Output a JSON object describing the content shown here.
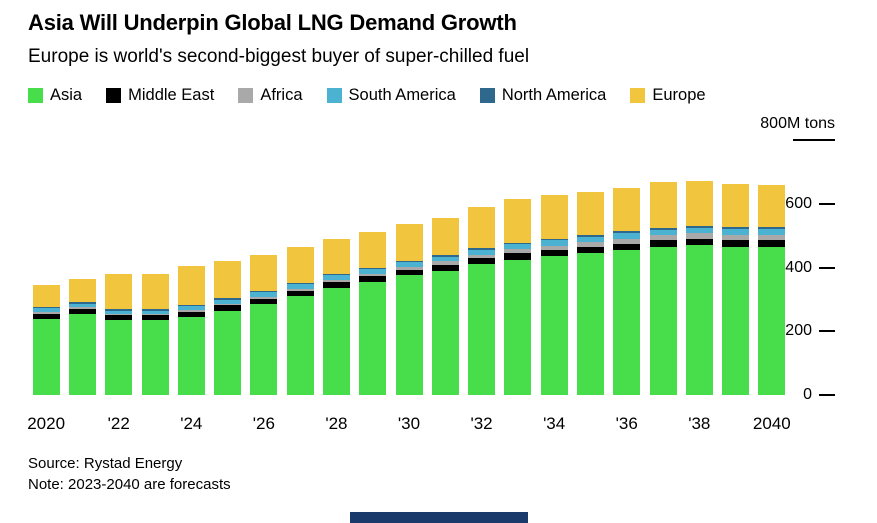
{
  "footer": {
    "source": "Source: Rystad Energy",
    "note": "Note: 2023-2040 are forecasts"
  },
  "brand_bar_color": "#1a3a6b",
  "chart_data": {
    "type": "bar",
    "stacked": true,
    "title": "Asia Will Underpin Global LNG Demand Growth",
    "subtitle": "Europe is world's second-biggest buyer of super-chilled fuel",
    "unit": "M tons",
    "legend_position": "top",
    "grid": false,
    "ylim": [
      0,
      800
    ],
    "x": [
      2020,
      2021,
      2022,
      2023,
      2024,
      2025,
      2026,
      2027,
      2028,
      2029,
      2030,
      2031,
      2032,
      2033,
      2034,
      2035,
      2036,
      2037,
      2038,
      2039,
      2040
    ],
    "x_tick_labels": [
      {
        "index": 0,
        "label": "2020"
      },
      {
        "index": 2,
        "label": "'22"
      },
      {
        "index": 4,
        "label": "'24"
      },
      {
        "index": 6,
        "label": "'26"
      },
      {
        "index": 8,
        "label": "'28"
      },
      {
        "index": 10,
        "label": "'30"
      },
      {
        "index": 12,
        "label": "'32"
      },
      {
        "index": 14,
        "label": "'34"
      },
      {
        "index": 16,
        "label": "'36"
      },
      {
        "index": 18,
        "label": "'38"
      },
      {
        "index": 20,
        "label": "2040"
      }
    ],
    "y_ticks": [
      {
        "value": 800,
        "label": "800M tons"
      },
      {
        "value": 600,
        "label": "600"
      },
      {
        "value": 400,
        "label": "400"
      },
      {
        "value": 200,
        "label": "200"
      },
      {
        "value": 0,
        "label": "0"
      }
    ],
    "series": [
      {
        "name": "Asia",
        "color": "#48dd4b",
        "values": [
          240,
          255,
          235,
          235,
          245,
          265,
          285,
          310,
          335,
          355,
          375,
          390,
          410,
          425,
          435,
          445,
          455,
          465,
          470,
          465,
          465
        ]
      },
      {
        "name": "Middle East",
        "color": "#000000",
        "values": [
          15,
          15,
          15,
          15,
          16,
          16,
          17,
          17,
          18,
          18,
          18,
          19,
          19,
          20,
          20,
          20,
          20,
          20,
          20,
          20,
          20
        ]
      },
      {
        "name": "Africa",
        "color": "#a9a9a9",
        "values": [
          5,
          5,
          5,
          5,
          6,
          6,
          7,
          7,
          8,
          8,
          9,
          10,
          11,
          12,
          13,
          14,
          15,
          16,
          17,
          18,
          18
        ]
      },
      {
        "name": "South America",
        "color": "#4cb2d2",
        "values": [
          12,
          12,
          10,
          10,
          12,
          12,
          13,
          13,
          14,
          14,
          15,
          15,
          16,
          16,
          17,
          17,
          18,
          18,
          18,
          18,
          18
        ]
      },
      {
        "name": "North America",
        "color": "#2e688c",
        "values": [
          5,
          5,
          5,
          5,
          5,
          5,
          5,
          5,
          5,
          5,
          5,
          5,
          5,
          5,
          5,
          5,
          5,
          5,
          5,
          5,
          5
        ]
      },
      {
        "name": "Europe",
        "color": "#f2c53f",
        "values": [
          68,
          73,
          110,
          110,
          121,
          116,
          113,
          113,
          110,
          110,
          113,
          116,
          129,
          137,
          138,
          137,
          135,
          144,
          142,
          136,
          134
        ]
      }
    ]
  }
}
